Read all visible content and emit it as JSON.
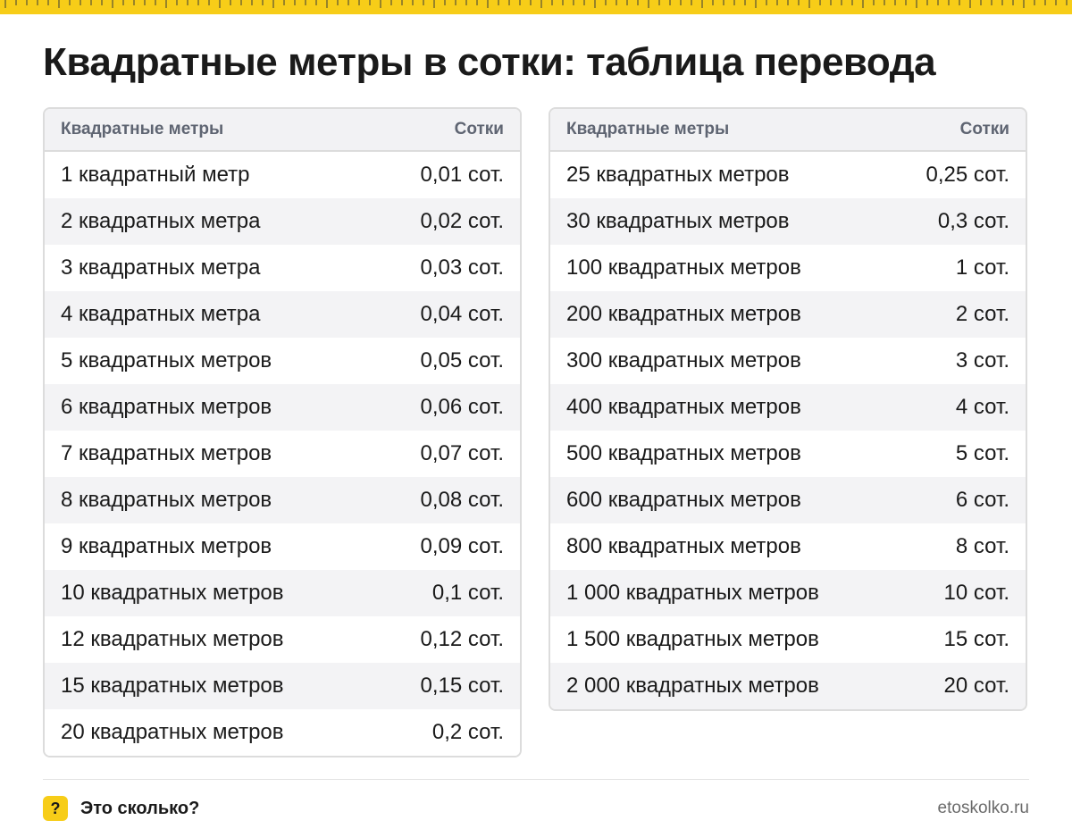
{
  "colors": {
    "accent": "#f7cd18",
    "text": "#1a1a1a",
    "header_text": "#5f6572",
    "stripe": "#f3f3f5",
    "border": "#dcdcdc"
  },
  "title": "Квадратные метры в сотки: таблица перевода",
  "tables": [
    {
      "header": {
        "col1": "Квадратные метры",
        "col2": "Сотки"
      },
      "rows": [
        {
          "meters": "1 квадратный метр",
          "sotki": "0,01 сот."
        },
        {
          "meters": "2 квадратных метра",
          "sotki": "0,02 сот."
        },
        {
          "meters": "3 квадратных метра",
          "sotki": "0,03 сот."
        },
        {
          "meters": "4 квадратных метра",
          "sotki": "0,04 сот."
        },
        {
          "meters": "5 квадратных метров",
          "sotki": "0,05 сот."
        },
        {
          "meters": "6 квадратных метров",
          "sotki": "0,06 сот."
        },
        {
          "meters": "7 квадратных метров",
          "sotki": "0,07 сот."
        },
        {
          "meters": "8 квадратных метров",
          "sotki": "0,08 сот."
        },
        {
          "meters": "9 квадратных метров",
          "sotki": "0,09 сот."
        },
        {
          "meters": "10 квадратных метров",
          "sotki": "0,1 сот."
        },
        {
          "meters": "12 квадратных метров",
          "sotki": "0,12 сот."
        },
        {
          "meters": "15 квадратных метров",
          "sotki": "0,15 сот."
        },
        {
          "meters": "20 квадратных метров",
          "sotki": "0,2 сот."
        }
      ]
    },
    {
      "header": {
        "col1": "Квадратные метры",
        "col2": "Сотки"
      },
      "rows": [
        {
          "meters": "25 квадратных метров",
          "sotki": "0,25 сот."
        },
        {
          "meters": "30 квадратных метров",
          "sotki": "0,3 сот."
        },
        {
          "meters": "100 квадратных метров",
          "sotki": "1 сот."
        },
        {
          "meters": "200 квадратных метров",
          "sotki": "2 сот."
        },
        {
          "meters": "300 квадратных метров",
          "sotki": "3 сот."
        },
        {
          "meters": "400 квадратных метров",
          "sotki": "4 сот."
        },
        {
          "meters": "500 квадратных метров",
          "sotki": "5 сот."
        },
        {
          "meters": "600 квадратных метров",
          "sotki": "6 сот."
        },
        {
          "meters": "800 квадратных метров",
          "sotki": "8 сот."
        },
        {
          "meters": "1 000 квадратных метров",
          "sotki": "10 сот."
        },
        {
          "meters": "1 500 квадратных метров",
          "sotki": "15 сот."
        },
        {
          "meters": "2 000 квадратных метров",
          "sotki": "20 сот."
        }
      ]
    }
  ],
  "footer": {
    "icon": "question-mark-icon",
    "icon_glyph": "?",
    "brand": "Это сколько?",
    "site": "etoskolko.ru"
  }
}
